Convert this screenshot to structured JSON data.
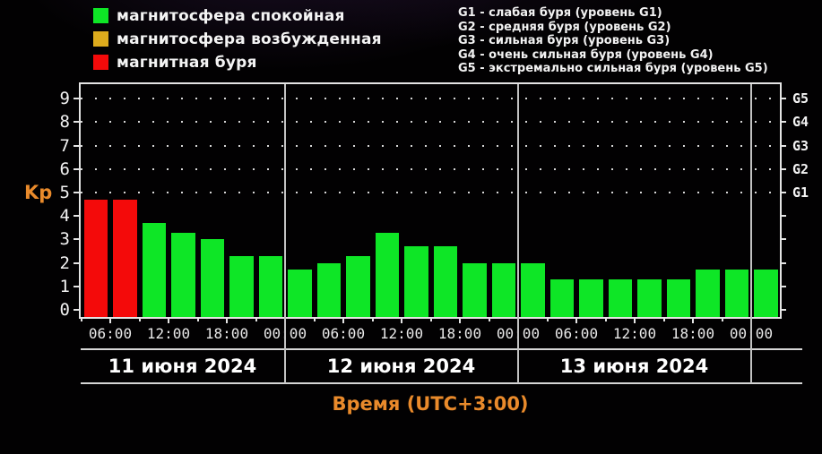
{
  "colors": {
    "calm": "#0ee626",
    "excited": "#ddab1d",
    "storm": "#f40a0a",
    "axis": "#e4e4e4",
    "accent_orange": "#e98a2b",
    "grid_dot": "#e1e1e1",
    "divider": "#c2c2c2"
  },
  "legend": {
    "items": [
      {
        "key": "calm",
        "label": "магнитосфера спокойная"
      },
      {
        "key": "excited",
        "label": "магнитосфера возбужденная"
      },
      {
        "key": "storm",
        "label": "магнитная буря"
      }
    ]
  },
  "storm_scale": {
    "lines": [
      "G1 - слабая буря (уровень G1)",
      "G2 - средняя буря (уровень G2)",
      "G3 - сильная буря (уровень G3)",
      "G4 - очень сильная буря (уровень G4)",
      "G5 - экстремально сильная буря (уровень G5)"
    ]
  },
  "axes": {
    "y_label": "Kp",
    "y_ticks": [
      0,
      1,
      2,
      3,
      4,
      5,
      6,
      7,
      8,
      9
    ],
    "g_labels": [
      {
        "label": "G1",
        "kp": 5
      },
      {
        "label": "G2",
        "kp": 6
      },
      {
        "label": "G3",
        "kp": 7
      },
      {
        "label": "G4",
        "kp": 8
      },
      {
        "label": "G5",
        "kp": 9
      }
    ],
    "time_tick_labels": [
      "06:00",
      "12:00",
      "18:00",
      "00:00",
      "06:00",
      "12:00",
      "18:00",
      "00:00",
      "06:00",
      "12:00",
      "18:00",
      "00:00"
    ],
    "x_label": "Время (UTC+3:00)"
  },
  "chart_data": {
    "type": "bar",
    "title": "",
    "ylabel": "Kp",
    "xlabel": "Время (UTC+3:00)",
    "ylim": [
      -0.3,
      9.7
    ],
    "slot_hours": 3,
    "grid_dotted_at_kp": [
      5,
      6,
      7,
      8,
      9
    ],
    "days": [
      {
        "date": "11 июня 2024",
        "first_slot_hour": 3,
        "bars": [
          {
            "kp": 4.7,
            "state": "storm"
          },
          {
            "kp": 4.7,
            "state": "storm"
          },
          {
            "kp": 3.7,
            "state": "calm"
          },
          {
            "kp": 3.3,
            "state": "calm"
          },
          {
            "kp": 3.0,
            "state": "calm"
          },
          {
            "kp": 2.3,
            "state": "calm"
          },
          {
            "kp": 2.3,
            "state": "calm"
          }
        ]
      },
      {
        "date": "12 июня 2024",
        "first_slot_hour": 0,
        "bars": [
          {
            "kp": 1.7,
            "state": "calm"
          },
          {
            "kp": 2.0,
            "state": "calm"
          },
          {
            "kp": 2.3,
            "state": "calm"
          },
          {
            "kp": 3.3,
            "state": "calm"
          },
          {
            "kp": 2.7,
            "state": "calm"
          },
          {
            "kp": 2.7,
            "state": "calm"
          },
          {
            "kp": 2.0,
            "state": "calm"
          },
          {
            "kp": 2.0,
            "state": "calm"
          }
        ]
      },
      {
        "date": "13 июня 2024",
        "first_slot_hour": 0,
        "bars": [
          {
            "kp": 2.0,
            "state": "calm"
          },
          {
            "kp": 1.3,
            "state": "calm"
          },
          {
            "kp": 1.3,
            "state": "calm"
          },
          {
            "kp": 1.3,
            "state": "calm"
          },
          {
            "kp": 1.3,
            "state": "calm"
          },
          {
            "kp": 1.3,
            "state": "calm"
          },
          {
            "kp": 1.7,
            "state": "calm"
          },
          {
            "kp": 1.7,
            "state": "calm"
          }
        ]
      },
      {
        "date": "",
        "first_slot_hour": 0,
        "bars": [
          {
            "kp": 1.7,
            "state": "calm"
          }
        ]
      }
    ]
  }
}
